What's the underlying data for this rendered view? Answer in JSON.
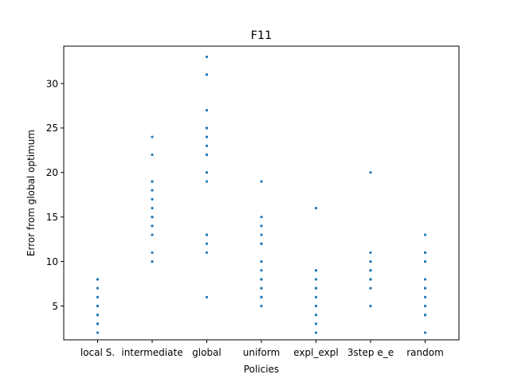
{
  "chart_data": {
    "type": "scatter",
    "title": "F11",
    "xlabel": "Policies",
    "ylabel": "Error from global optimum",
    "categories": [
      "local S.",
      "intermediate",
      "global",
      "uniform",
      "expl_expl",
      "3step e_e",
      "random"
    ],
    "ylim": [
      1.2,
      34.2
    ],
    "yticks": [
      5,
      10,
      15,
      20,
      25,
      30
    ],
    "grid": false,
    "marker_color": "#1f77b4",
    "series": [
      {
        "values": [
          [
            2,
            3,
            3,
            4,
            4,
            5,
            5,
            6,
            7,
            8
          ],
          [
            10,
            11,
            13,
            14,
            15,
            15,
            16,
            17,
            18,
            19,
            19,
            22,
            24
          ],
          [
            6,
            11,
            12,
            13,
            13,
            19,
            20,
            22,
            22,
            23,
            24,
            24,
            25,
            25,
            27,
            31,
            33
          ],
          [
            5,
            6,
            6,
            7,
            7,
            8,
            8,
            9,
            10,
            12,
            12,
            13,
            14,
            15,
            19
          ],
          [
            2,
            3,
            4,
            5,
            6,
            7,
            7,
            8,
            9,
            9,
            16
          ],
          [
            5,
            7,
            8,
            8,
            9,
            9,
            10,
            11,
            20
          ],
          [
            2,
            4,
            4,
            5,
            6,
            7,
            7,
            8,
            10,
            11,
            11,
            13
          ]
        ]
      }
    ]
  }
}
